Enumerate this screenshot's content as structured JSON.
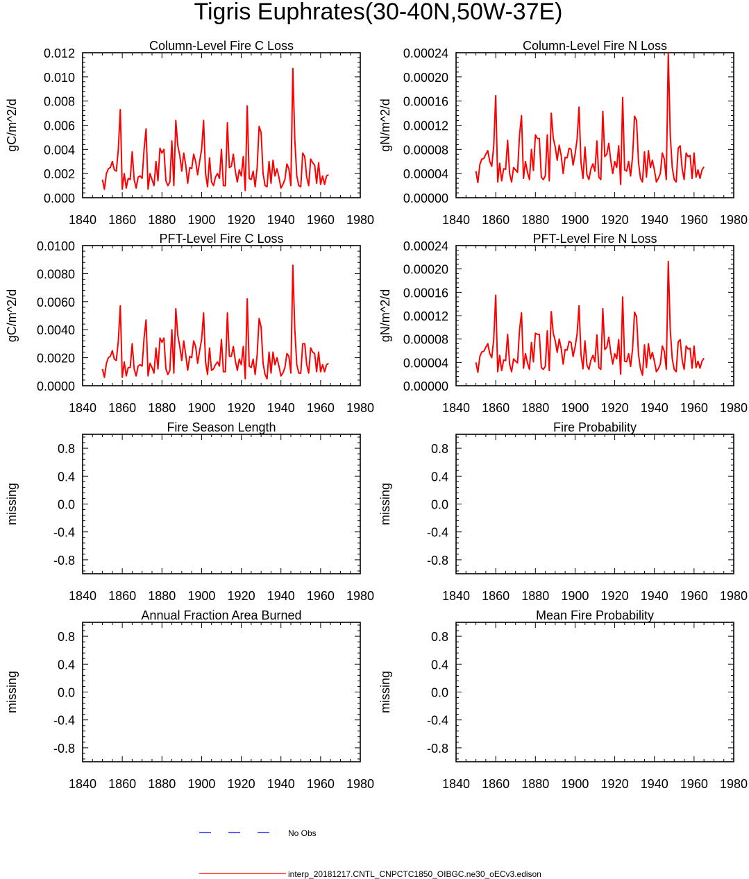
{
  "title": "Tigris Euphrates(30-40N,50W-37E)",
  "colors": {
    "model": "#ff0000",
    "obs": "#0000ff",
    "axis": "#000000",
    "background": "#ffffff"
  },
  "legend": {
    "obs_label": "No Obs",
    "model_label": "interp_20181217.CNTL_CNPCTC1850_OIBGC.ne30_oECv3.edison"
  },
  "chart_data": [
    {
      "type": "line",
      "title": "Column-Level Fire C Loss",
      "ylabel": "gC/m^2/d",
      "xlabel": "",
      "xlim": [
        1840,
        1980
      ],
      "ylim": [
        0,
        0.012
      ],
      "xticks": [
        "1840",
        "1860",
        "1880",
        "1900",
        "1920",
        "1940",
        "1960",
        "1980"
      ],
      "yticks": [
        "0.000",
        "0.002",
        "0.004",
        "0.006",
        "0.008",
        "0.010",
        "0.012"
      ],
      "series": [
        {
          "name": "interp_20181217.CNTL_CNPCTC1850_OIBGC.ne30_oECv3.edison",
          "x_start": 1850,
          "values": [
            0.0015,
            0.0007,
            0.002,
            0.0024,
            0.0025,
            0.003,
            0.0023,
            0.0022,
            0.004,
            0.0073,
            0.0007,
            0.002,
            0.0008,
            0.0016,
            0.0015,
            0.0038,
            0.0015,
            0.0008,
            0.0017,
            0.0018,
            0.0016,
            0.004,
            0.0057,
            0.0007,
            0.002,
            0.0015,
            0.001,
            0.003,
            0.0014,
            0.0041,
            0.0037,
            0.004,
            0.0014,
            0.001,
            0.0013,
            0.0047,
            0.001,
            0.0064,
            0.0043,
            0.0035,
            0.0022,
            0.0037,
            0.0027,
            0.0012,
            0.0025,
            0.0024,
            0.0036,
            0.003,
            0.0019,
            0.003,
            0.004,
            0.0064,
            0.002,
            0.0009,
            0.0033,
            0.0013,
            0.001,
            0.0017,
            0.002,
            0.0016,
            0.004,
            0.001,
            0.001,
            0.0062,
            0.0025,
            0.0026,
            0.0036,
            0.0022,
            0.0013,
            0.0023,
            0.0018,
            0.0034,
            0.0006,
            0.0076,
            0.0016,
            0.0015,
            0.0022,
            0.0009,
            0.0025,
            0.0059,
            0.0054,
            0.002,
            0.001,
            0.0009,
            0.003,
            0.0012,
            0.0031,
            0.0018,
            0.0024,
            0.0017,
            0.0008,
            0.0011,
            0.0015,
            0.0028,
            0.0024,
            0.001,
            0.0107,
            0.0048,
            0.0018,
            0.001,
            0.0009,
            0.0037,
            0.0034,
            0.0017,
            0.001,
            0.0032,
            0.0029,
            0.0027,
            0.0012,
            0.0029,
            0.0011,
            0.0018,
            0.0011,
            0.0018,
            0.0019
          ]
        }
      ]
    },
    {
      "type": "line",
      "title": "Column-Level Fire N Loss",
      "ylabel": "gN/m^2/d",
      "xlabel": "",
      "xlim": [
        1840,
        1980
      ],
      "ylim": [
        0,
        0.00024
      ],
      "xticks": [
        "1840",
        "1860",
        "1880",
        "1900",
        "1920",
        "1940",
        "1960",
        "1980"
      ],
      "yticks": [
        "0.00000",
        "0.00004",
        "0.00008",
        "0.00012",
        "0.00016",
        "0.00020",
        "0.00024"
      ],
      "series": [
        {
          "name": "interp_20181217.CNTL_CNPCTC1850_OIBGC.ne30_oECv3.edison",
          "x_start": 1850,
          "values": [
            4.4e-05,
            2.5e-05,
            5.5e-05,
            6.4e-05,
            6.5e-05,
            7.2e-05,
            7.8e-05,
            6e-05,
            5.2e-05,
            8.6e-05,
            0.000169,
            2.6e-05,
            5.7e-05,
            2.8e-05,
            4.8e-05,
            4.7e-05,
            9.5e-05,
            4e-05,
            2.6e-05,
            5e-05,
            4.6e-05,
            4.2e-05,
            0.000104,
            0.000136,
            3.2e-05,
            6e-05,
            4.2e-05,
            3e-05,
            8e-05,
            4.5e-05,
            0.000104,
            9.8e-05,
            9.8e-05,
            3.4e-05,
            3e-05,
            3.6e-05,
            0.000104,
            2.8e-05,
            0.00014,
            9.9e-05,
            8.4e-05,
            6.2e-05,
            8.7e-05,
            7e-05,
            4e-05,
            6.7e-05,
            6.6e-05,
            8.2e-05,
            8e-05,
            5.4e-05,
            7.2e-05,
            9.6e-05,
            0.00015,
            5.8e-05,
            3.2e-05,
            8.4e-05,
            3.8e-05,
            3e-05,
            4.8e-05,
            5.6e-05,
            4.4e-05,
            9.4e-05,
            3.4e-05,
            3e-05,
            0.000143,
            6.8e-05,
            7.2e-05,
            9e-05,
            6.2e-05,
            4e-05,
            6e-05,
            5e-05,
            8.6e-05,
            2.2e-05,
            0.000166,
            4.6e-05,
            4.4e-05,
            6e-05,
            3.6e-05,
            6.8e-05,
            0.000135,
            0.000128,
            5.8e-05,
            3.2e-05,
            2.6e-05,
            7.6e-05,
            3.4e-05,
            7.8e-05,
            5e-05,
            6.2e-05,
            4.6e-05,
            2.6e-05,
            3.2e-05,
            4e-05,
            7.4e-05,
            6.4e-05,
            3e-05,
            0.00024,
            0.000104,
            5e-05,
            3e-05,
            2.6e-05,
            8.2e-05,
            8.6e-05,
            4.8e-05,
            3e-05,
            7.4e-05,
            6.8e-05,
            7e-05,
            3.2e-05,
            7.4e-05,
            3.4e-05,
            4.6e-05,
            3.2e-05,
            4.6e-05,
            5.1e-05
          ]
        }
      ]
    },
    {
      "type": "line",
      "title": "PFT-Level Fire C Loss",
      "ylabel": "gC/m^2/d",
      "xlabel": "",
      "xlim": [
        1840,
        1980
      ],
      "ylim": [
        0,
        0.01
      ],
      "xticks": [
        "1840",
        "1860",
        "1880",
        "1900",
        "1920",
        "1940",
        "1960",
        "1980"
      ],
      "yticks": [
        "0.0000",
        "0.0020",
        "0.0040",
        "0.0060",
        "0.0080",
        "0.0100"
      ],
      "series": [
        {
          "name": "interp_20181217.CNTL_CNPCTC1850_OIBGC.ne30_oECv3.edison",
          "x_start": 1850,
          "values": [
            0.0012,
            0.0006,
            0.0016,
            0.002,
            0.0021,
            0.0025,
            0.0019,
            0.0018,
            0.0032,
            0.0057,
            0.0006,
            0.0017,
            0.0007,
            0.0013,
            0.0013,
            0.003,
            0.0012,
            0.0007,
            0.0014,
            0.0015,
            0.0014,
            0.0034,
            0.0047,
            0.0007,
            0.0016,
            0.0013,
            0.0009,
            0.0027,
            0.0012,
            0.0034,
            0.0031,
            0.0034,
            0.0012,
            0.0008,
            0.0011,
            0.004,
            0.0009,
            0.0055,
            0.0036,
            0.0028,
            0.0018,
            0.0032,
            0.0022,
            0.0011,
            0.0021,
            0.002,
            0.0032,
            0.0028,
            0.0016,
            0.0025,
            0.0033,
            0.0052,
            0.0017,
            0.0008,
            0.0027,
            0.0011,
            0.0012,
            0.0015,
            0.0017,
            0.0014,
            0.0033,
            0.001,
            0.001,
            0.0052,
            0.0021,
            0.0021,
            0.0028,
            0.0018,
            0.0011,
            0.0019,
            0.0015,
            0.0028,
            0.0005,
            0.0062,
            0.0014,
            0.0013,
            0.0019,
            0.0008,
            0.0022,
            0.0048,
            0.0042,
            0.0016,
            0.0008,
            0.0005,
            0.0024,
            0.0009,
            0.0024,
            0.0015,
            0.002,
            0.0014,
            0.0007,
            0.0009,
            0.0013,
            0.0023,
            0.0021,
            0.0009,
            0.0086,
            0.004,
            0.0015,
            0.0009,
            0.0009,
            0.003,
            0.003,
            0.0015,
            0.0009,
            0.0027,
            0.0024,
            0.0023,
            0.001,
            0.0024,
            0.001,
            0.0015,
            0.001,
            0.0015,
            0.0016
          ]
        }
      ]
    },
    {
      "type": "line",
      "title": "PFT-Level Fire N Loss",
      "ylabel": "gN/m^2/d",
      "xlabel": "",
      "xlim": [
        1840,
        1980
      ],
      "ylim": [
        0,
        0.00024
      ],
      "xticks": [
        "1840",
        "1860",
        "1880",
        "1900",
        "1920",
        "1940",
        "1960",
        "1980"
      ],
      "yticks": [
        "0.00000",
        "0.00004",
        "0.00008",
        "0.00012",
        "0.00016",
        "0.00020",
        "0.00024"
      ],
      "series": [
        {
          "name": "interp_20181217.CNTL_CNPCTC1850_OIBGC.ne30_oECv3.edison",
          "x_start": 1850,
          "values": [
            4e-05,
            2.3e-05,
            5e-05,
            5.8e-05,
            5.9e-05,
            6.6e-05,
            7.2e-05,
            5.5e-05,
            4.8e-05,
            8e-05,
            0.000155,
            2.4e-05,
            5.2e-05,
            2.6e-05,
            4.4e-05,
            4.3e-05,
            8.8e-05,
            3.7e-05,
            2.4e-05,
            4.6e-05,
            4.2e-05,
            3.9e-05,
            9.6e-05,
            0.000125,
            3e-05,
            5.5e-05,
            3.9e-05,
            2.8e-05,
            7.4e-05,
            4.1e-05,
            9e-05,
            8.8e-05,
            8.8e-05,
            3.1e-05,
            2.8e-05,
            3.3e-05,
            9.4e-05,
            2.6e-05,
            0.000127,
            9e-05,
            7.7e-05,
            5.7e-05,
            8e-05,
            6.4e-05,
            3.7e-05,
            6.2e-05,
            6.1e-05,
            7.6e-05,
            7.4e-05,
            5e-05,
            6.6e-05,
            8.8e-05,
            0.000137,
            5.3e-05,
            2.9e-05,
            7.7e-05,
            3.5e-05,
            2.8e-05,
            4.4e-05,
            5.2e-05,
            4.1e-05,
            8.7e-05,
            3.1e-05,
            2.8e-05,
            0.000132,
            6.2e-05,
            6.6e-05,
            8.3e-05,
            5.7e-05,
            3.7e-05,
            5.5e-05,
            4.6e-05,
            7.9e-05,
            2e-05,
            0.000152,
            4.2e-05,
            4.1e-05,
            5.5e-05,
            3.3e-05,
            6.3e-05,
            0.000126,
            0.000118,
            5.3e-05,
            2.9e-05,
            1.8e-05,
            7e-05,
            3.1e-05,
            7.2e-05,
            4.6e-05,
            5.7e-05,
            4.2e-05,
            2.4e-05,
            2.9e-05,
            3.7e-05,
            6.8e-05,
            5.9e-05,
            2.8e-05,
            0.000213,
            9.6e-05,
            4.6e-05,
            2.8e-05,
            2.4e-05,
            7.5e-05,
            7.9e-05,
            4.4e-05,
            2.8e-05,
            6.8e-05,
            6.3e-05,
            6.4e-05,
            3e-05,
            6.8e-05,
            3.1e-05,
            4.2e-05,
            3e-05,
            4.2e-05,
            4.7e-05
          ]
        }
      ]
    },
    {
      "type": "line",
      "title": "Fire Season Length",
      "ylabel": "missing",
      "xlabel": "",
      "xlim": [
        1840,
        1980
      ],
      "ylim": [
        -1,
        1
      ],
      "xticks": [
        "1840",
        "1860",
        "1880",
        "1900",
        "1920",
        "1940",
        "1960",
        "1980"
      ],
      "yticks": [
        "-0.8",
        "-0.4",
        "0.0",
        "0.4",
        "0.8"
      ],
      "series": []
    },
    {
      "type": "line",
      "title": "Fire Probability",
      "ylabel": "missing",
      "xlabel": "",
      "xlim": [
        1840,
        1980
      ],
      "ylim": [
        -1,
        1
      ],
      "xticks": [
        "1840",
        "1860",
        "1880",
        "1900",
        "1920",
        "1940",
        "1960",
        "1980"
      ],
      "yticks": [
        "-0.8",
        "-0.4",
        "0.0",
        "0.4",
        "0.8"
      ],
      "series": []
    },
    {
      "type": "line",
      "title": "Annual Fraction Area Burned",
      "ylabel": "missing",
      "xlabel": "",
      "xlim": [
        1840,
        1980
      ],
      "ylim": [
        -1,
        1
      ],
      "xticks": [
        "1840",
        "1860",
        "1880",
        "1900",
        "1920",
        "1940",
        "1960",
        "1980"
      ],
      "yticks": [
        "-0.8",
        "-0.4",
        "0.0",
        "0.4",
        "0.8"
      ],
      "series": []
    },
    {
      "type": "line",
      "title": "Mean Fire Probability",
      "ylabel": "missing",
      "xlabel": "",
      "xlim": [
        1840,
        1980
      ],
      "ylim": [
        -1,
        1
      ],
      "xticks": [
        "1840",
        "1860",
        "1880",
        "1900",
        "1920",
        "1940",
        "1960",
        "1980"
      ],
      "yticks": [
        "-0.8",
        "-0.4",
        "0.0",
        "0.4",
        "0.8"
      ],
      "series": []
    }
  ]
}
